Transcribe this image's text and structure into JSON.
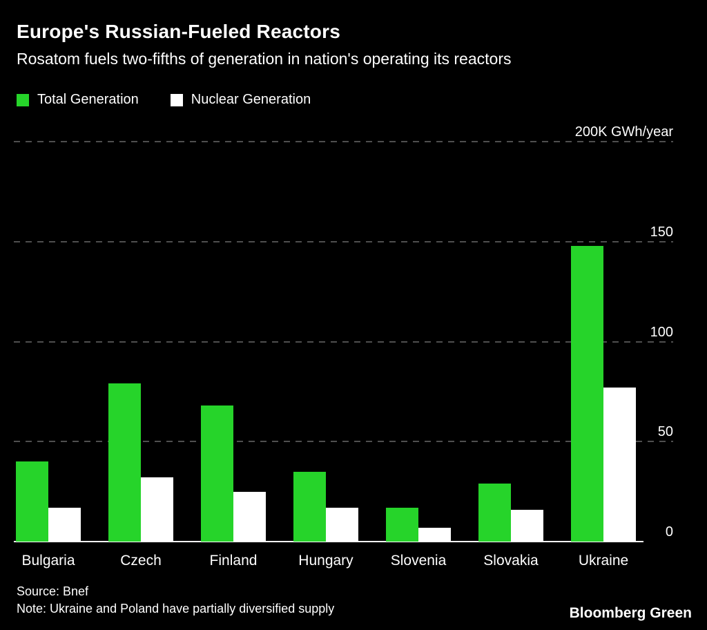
{
  "header": {
    "title": "Europe's Russian-Fueled Reactors",
    "subtitle": "Rosatom fuels two-fifths of generation in nation's operating its reactors"
  },
  "legend": [
    {
      "label": "Total Generation",
      "color": "#26d42a"
    },
    {
      "label": "Nuclear Generation",
      "color": "#ffffff"
    }
  ],
  "chart_data": {
    "type": "bar",
    "title": "Europe's Russian-Fueled Reactors",
    "subtitle": "Rosatom fuels two-fifths of generation in nation's operating its reactors",
    "categories": [
      "Bulgaria",
      "Czech",
      "Finland",
      "Hungary",
      "Slovenia",
      "Slovakia",
      "Ukraine"
    ],
    "series": [
      {
        "name": "Total Generation",
        "color": "#26d42a",
        "values": [
          40,
          79,
          68,
          35,
          17,
          29,
          148
        ]
      },
      {
        "name": "Nuclear Generation",
        "color": "#ffffff",
        "values": [
          17,
          32,
          25,
          17,
          7,
          16,
          77
        ]
      }
    ],
    "unit": "K GWh/year",
    "ylim": [
      0,
      200
    ],
    "yticks": [
      {
        "value": 200,
        "label": "200K GWh/year",
        "dashed": true
      },
      {
        "value": 150,
        "label": "150",
        "dashed": true
      },
      {
        "value": 100,
        "label": "100",
        "dashed": true
      },
      {
        "value": 50,
        "label": "50",
        "dashed": true
      },
      {
        "value": 0,
        "label": "0",
        "dashed": false
      }
    ],
    "grid": "horizontal-dashed",
    "legend_position": "top-left",
    "background": "#000000"
  },
  "footer": {
    "source": "Source: Bnef",
    "note": "Note: Ukraine and Poland have partially diversified supply",
    "brand": "Bloomberg Green"
  }
}
